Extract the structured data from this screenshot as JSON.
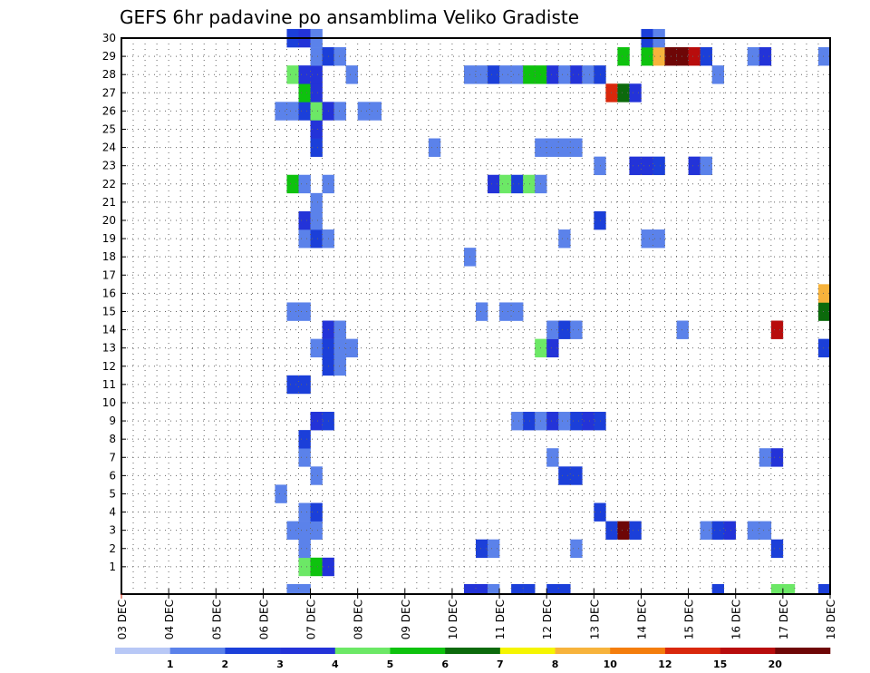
{
  "chart_data": {
    "type": "heatmap",
    "title": "GEFS 6hr padavine po ansamblima Veliko Gradiste",
    "x_tick_labels": [
      "03 DEC",
      "04 DEC",
      "05 DEC",
      "06 DEC",
      "07 DEC",
      "08 DEC",
      "09 DEC",
      "10 DEC",
      "11 DEC",
      "12 DEC",
      "13 DEC",
      "14 DEC",
      "15 DEC",
      "16 DEC",
      "17 DEC",
      "18 DEC"
    ],
    "x_steps_per_day": 4,
    "xlim_steps": [
      0,
      60
    ],
    "y_tick_labels": [
      "1",
      "2",
      "3",
      "4",
      "5",
      "6",
      "7",
      "8",
      "9",
      "10",
      "11",
      "12",
      "13",
      "14",
      "15",
      "16",
      "17",
      "18",
      "19",
      "20",
      "21",
      "22",
      "23",
      "24",
      "25",
      "26",
      "27",
      "28",
      "29",
      "30"
    ],
    "ylim_members": [
      0,
      30
    ],
    "grid": "dotted",
    "colorbar": {
      "levels": [
        "1",
        "2",
        "3",
        "4",
        "5",
        "6",
        "7",
        "8",
        "10",
        "12",
        "15",
        "20"
      ],
      "colors": [
        "#b8c8f6",
        "#5b82ea",
        "#1b3fd9",
        "#2333d8",
        "#6ce866",
        "#0ec20e",
        "#0c6a0c",
        "#f5f500",
        "#f7b33c",
        "#f47d0c",
        "#d9280c",
        "#b80c0c",
        "#6e0606"
      ]
    },
    "cells": [
      {
        "m": 0,
        "s": 14,
        "c": 1
      },
      {
        "m": 0,
        "s": 15,
        "c": 1
      },
      {
        "m": 0,
        "s": 29,
        "c": 3
      },
      {
        "m": 0,
        "s": 30,
        "c": 3
      },
      {
        "m": 0,
        "s": 31,
        "c": 1
      },
      {
        "m": 0,
        "s": 33,
        "c": 2
      },
      {
        "m": 0,
        "s": 34,
        "c": 2
      },
      {
        "m": 0,
        "s": 36,
        "c": 2
      },
      {
        "m": 0,
        "s": 37,
        "c": 2
      },
      {
        "m": 0,
        "s": 50,
        "c": 2
      },
      {
        "m": 0,
        "s": 55,
        "c": 4
      },
      {
        "m": 0,
        "s": 56,
        "c": 4
      },
      {
        "m": 0,
        "s": 59,
        "c": 2
      },
      {
        "m": 1,
        "s": 15,
        "c": 4
      },
      {
        "m": 1,
        "s": 16,
        "c": 5
      },
      {
        "m": 1,
        "s": 17,
        "c": 3
      },
      {
        "m": 2,
        "s": 15,
        "c": 1
      },
      {
        "m": 2,
        "s": 30,
        "c": 2
      },
      {
        "m": 2,
        "s": 31,
        "c": 1
      },
      {
        "m": 2,
        "s": 38,
        "c": 1
      },
      {
        "m": 2,
        "s": 55,
        "c": 2
      },
      {
        "m": 3,
        "s": 14,
        "c": 1
      },
      {
        "m": 3,
        "s": 15,
        "c": 1
      },
      {
        "m": 3,
        "s": 16,
        "c": 1
      },
      {
        "m": 3,
        "s": 41,
        "c": 2
      },
      {
        "m": 3,
        "s": 42,
        "c": 12
      },
      {
        "m": 3,
        "s": 43,
        "c": 2
      },
      {
        "m": 3,
        "s": 49,
        "c": 1
      },
      {
        "m": 3,
        "s": 50,
        "c": 2
      },
      {
        "m": 3,
        "s": 51,
        "c": 3
      },
      {
        "m": 3,
        "s": 53,
        "c": 1
      },
      {
        "m": 3,
        "s": 54,
        "c": 1
      },
      {
        "m": 4,
        "s": 15,
        "c": 1
      },
      {
        "m": 4,
        "s": 16,
        "c": 2
      },
      {
        "m": 4,
        "s": 40,
        "c": 2
      },
      {
        "m": 5,
        "s": 13,
        "c": 1
      },
      {
        "m": 6,
        "s": 16,
        "c": 1
      },
      {
        "m": 6,
        "s": 37,
        "c": 2
      },
      {
        "m": 6,
        "s": 38,
        "c": 2
      },
      {
        "m": 7,
        "s": 15,
        "c": 1
      },
      {
        "m": 7,
        "s": 36,
        "c": 1
      },
      {
        "m": 7,
        "s": 54,
        "c": 1
      },
      {
        "m": 7,
        "s": 55,
        "c": 3
      },
      {
        "m": 8,
        "s": 15,
        "c": 2
      },
      {
        "m": 9,
        "s": 16,
        "c": 3
      },
      {
        "m": 9,
        "s": 17,
        "c": 2
      },
      {
        "m": 9,
        "s": 33,
        "c": 1
      },
      {
        "m": 9,
        "s": 34,
        "c": 2
      },
      {
        "m": 9,
        "s": 35,
        "c": 1
      },
      {
        "m": 9,
        "s": 36,
        "c": 3
      },
      {
        "m": 9,
        "s": 37,
        "c": 1
      },
      {
        "m": 9,
        "s": 38,
        "c": 2
      },
      {
        "m": 9,
        "s": 39,
        "c": 3
      },
      {
        "m": 9,
        "s": 40,
        "c": 2
      },
      {
        "m": 11,
        "s": 14,
        "c": 2
      },
      {
        "m": 11,
        "s": 15,
        "c": 2
      },
      {
        "m": 12,
        "s": 17,
        "c": 2
      },
      {
        "m": 12,
        "s": 18,
        "c": 1
      },
      {
        "m": 13,
        "s": 16,
        "c": 1
      },
      {
        "m": 13,
        "s": 17,
        "c": 2
      },
      {
        "m": 13,
        "s": 18,
        "c": 1
      },
      {
        "m": 13,
        "s": 19,
        "c": 1
      },
      {
        "m": 13,
        "s": 35,
        "c": 4
      },
      {
        "m": 13,
        "s": 36,
        "c": 3
      },
      {
        "m": 13,
        "s": 59,
        "c": 2
      },
      {
        "m": 14,
        "s": 17,
        "c": 3
      },
      {
        "m": 14,
        "s": 18,
        "c": 1
      },
      {
        "m": 14,
        "s": 36,
        "c": 1
      },
      {
        "m": 14,
        "s": 37,
        "c": 2
      },
      {
        "m": 14,
        "s": 38,
        "c": 1
      },
      {
        "m": 14,
        "s": 47,
        "c": 1
      },
      {
        "m": 14,
        "s": 55,
        "c": 11
      },
      {
        "m": 15,
        "s": 14,
        "c": 1
      },
      {
        "m": 15,
        "s": 15,
        "c": 1
      },
      {
        "m": 15,
        "s": 30,
        "c": 1
      },
      {
        "m": 15,
        "s": 32,
        "c": 1
      },
      {
        "m": 15,
        "s": 33,
        "c": 1
      },
      {
        "m": 15,
        "s": 59,
        "c": 6
      },
      {
        "m": 16,
        "s": 59,
        "c": 8
      },
      {
        "m": 18,
        "s": 29,
        "c": 1
      },
      {
        "m": 19,
        "s": 15,
        "c": 1
      },
      {
        "m": 19,
        "s": 16,
        "c": 2
      },
      {
        "m": 19,
        "s": 17,
        "c": 1
      },
      {
        "m": 19,
        "s": 37,
        "c": 1
      },
      {
        "m": 19,
        "s": 44,
        "c": 1
      },
      {
        "m": 19,
        "s": 45,
        "c": 1
      },
      {
        "m": 20,
        "s": 15,
        "c": 3
      },
      {
        "m": 20,
        "s": 16,
        "c": 1
      },
      {
        "m": 20,
        "s": 40,
        "c": 2
      },
      {
        "m": 21,
        "s": 16,
        "c": 1
      },
      {
        "m": 22,
        "s": 14,
        "c": 5
      },
      {
        "m": 22,
        "s": 15,
        "c": 1
      },
      {
        "m": 22,
        "s": 17,
        "c": 1
      },
      {
        "m": 22,
        "s": 31,
        "c": 3
      },
      {
        "m": 22,
        "s": 32,
        "c": 4
      },
      {
        "m": 22,
        "s": 33,
        "c": 2
      },
      {
        "m": 22,
        "s": 34,
        "c": 4
      },
      {
        "m": 22,
        "s": 35,
        "c": 1
      },
      {
        "m": 23,
        "s": 40,
        "c": 1
      },
      {
        "m": 23,
        "s": 43,
        "c": 3
      },
      {
        "m": 23,
        "s": 44,
        "c": 3
      },
      {
        "m": 23,
        "s": 45,
        "c": 2
      },
      {
        "m": 23,
        "s": 48,
        "c": 3
      },
      {
        "m": 23,
        "s": 49,
        "c": 1
      },
      {
        "m": 24,
        "s": 16,
        "c": 2
      },
      {
        "m": 24,
        "s": 26,
        "c": 1
      },
      {
        "m": 24,
        "s": 35,
        "c": 1
      },
      {
        "m": 24,
        "s": 36,
        "c": 1
      },
      {
        "m": 24,
        "s": 37,
        "c": 1
      },
      {
        "m": 24,
        "s": 38,
        "c": 1
      },
      {
        "m": 25,
        "s": 16,
        "c": 3
      },
      {
        "m": 26,
        "s": 13,
        "c": 1
      },
      {
        "m": 26,
        "s": 14,
        "c": 1
      },
      {
        "m": 26,
        "s": 15,
        "c": 2
      },
      {
        "m": 26,
        "s": 16,
        "c": 4
      },
      {
        "m": 26,
        "s": 17,
        "c": 3
      },
      {
        "m": 26,
        "s": 18,
        "c": 1
      },
      {
        "m": 26,
        "s": 20,
        "c": 1
      },
      {
        "m": 26,
        "s": 21,
        "c": 1
      },
      {
        "m": 27,
        "s": 15,
        "c": 5
      },
      {
        "m": 27,
        "s": 16,
        "c": 3
      },
      {
        "m": 27,
        "s": 41,
        "c": 10
      },
      {
        "m": 27,
        "s": 42,
        "c": 6
      },
      {
        "m": 27,
        "s": 43,
        "c": 3
      },
      {
        "m": 28,
        "s": 14,
        "c": 4
      },
      {
        "m": 28,
        "s": 15,
        "c": 3
      },
      {
        "m": 28,
        "s": 16,
        "c": 3
      },
      {
        "m": 28,
        "s": 19,
        "c": 1
      },
      {
        "m": 28,
        "s": 29,
        "c": 1
      },
      {
        "m": 28,
        "s": 30,
        "c": 1
      },
      {
        "m": 28,
        "s": 31,
        "c": 2
      },
      {
        "m": 28,
        "s": 32,
        "c": 1
      },
      {
        "m": 28,
        "s": 33,
        "c": 1
      },
      {
        "m": 28,
        "s": 34,
        "c": 5
      },
      {
        "m": 28,
        "s": 35,
        "c": 5
      },
      {
        "m": 28,
        "s": 36,
        "c": 3
      },
      {
        "m": 28,
        "s": 37,
        "c": 1
      },
      {
        "m": 28,
        "s": 38,
        "c": 3
      },
      {
        "m": 28,
        "s": 39,
        "c": 1
      },
      {
        "m": 28,
        "s": 40,
        "c": 2
      },
      {
        "m": 28,
        "s": 50,
        "c": 1
      },
      {
        "m": 29,
        "s": 16,
        "c": 1
      },
      {
        "m": 29,
        "s": 17,
        "c": 2
      },
      {
        "m": 29,
        "s": 18,
        "c": 1
      },
      {
        "m": 29,
        "s": 42,
        "c": 5
      },
      {
        "m": 29,
        "s": 44,
        "c": 5
      },
      {
        "m": 29,
        "s": 45,
        "c": 8
      },
      {
        "m": 29,
        "s": 46,
        "c": 12
      },
      {
        "m": 29,
        "s": 47,
        "c": 12
      },
      {
        "m": 29,
        "s": 48,
        "c": 11
      },
      {
        "m": 29,
        "s": 49,
        "c": 2
      },
      {
        "m": 29,
        "s": 53,
        "c": 1
      },
      {
        "m": 29,
        "s": 54,
        "c": 3
      },
      {
        "m": 29,
        "s": 59,
        "c": 1
      },
      {
        "m": 30,
        "s": 14,
        "c": 2
      },
      {
        "m": 30,
        "s": 15,
        "c": 3
      },
      {
        "m": 30,
        "s": 16,
        "c": 1
      },
      {
        "m": 30,
        "s": 44,
        "c": 2
      },
      {
        "m": 30,
        "s": 45,
        "c": 1
      }
    ]
  }
}
